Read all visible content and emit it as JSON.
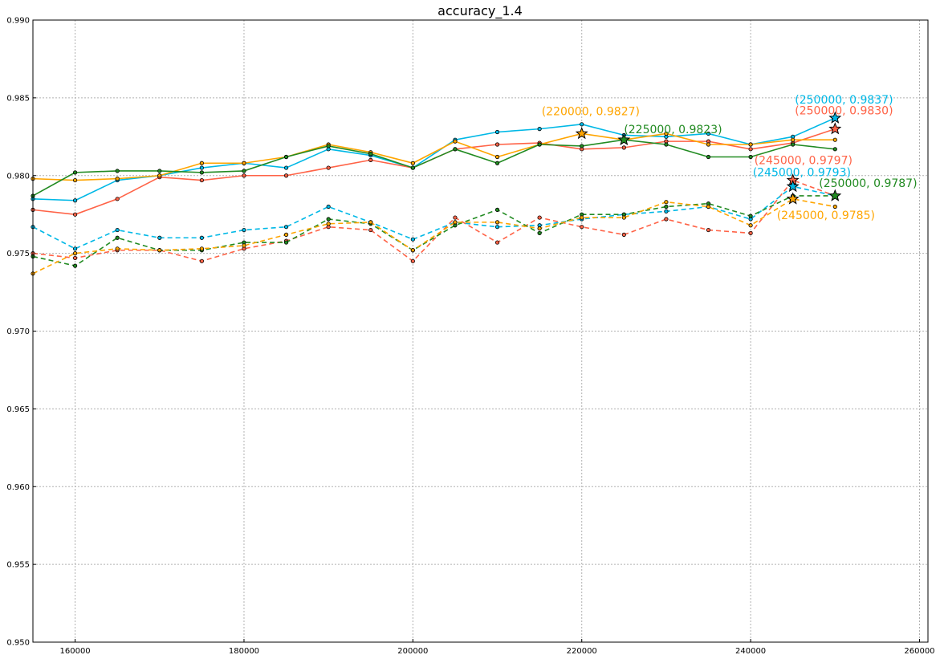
{
  "chart_data": {
    "type": "line",
    "title": "accuracy_1.4",
    "xlabel": "",
    "ylabel": "",
    "xlim": [
      155000,
      261000
    ],
    "ylim": [
      0.95,
      0.99
    ],
    "x_ticks": [
      "160000",
      "180000",
      "200000",
      "220000",
      "240000",
      "260000"
    ],
    "y_ticks": [
      "0.950",
      "0.955",
      "0.960",
      "0.965",
      "0.970",
      "0.975",
      "0.980",
      "0.985",
      "0.990"
    ],
    "grid": true,
    "legend": "none",
    "x": [
      155000,
      160000,
      165000,
      170000,
      175000,
      180000,
      185000,
      190000,
      195000,
      200000,
      205000,
      210000,
      215000,
      220000,
      225000,
      230000,
      235000,
      240000,
      245000,
      250000
    ],
    "series": [
      {
        "color": "#00b8e6",
        "dash": "solid",
        "values": [
          0.9785,
          0.9784,
          0.9797,
          0.98,
          0.9805,
          0.9808,
          0.9805,
          0.9817,
          0.9813,
          0.9805,
          0.9823,
          0.9828,
          0.983,
          0.9833,
          0.9826,
          0.9825,
          0.9827,
          0.982,
          0.9825,
          0.9837
        ],
        "best": {
          "x": 250000,
          "y": 0.9837,
          "label": "(250000, 0.9837)"
        }
      },
      {
        "color": "#ff6347",
        "dash": "solid",
        "values": [
          0.9778,
          0.9775,
          0.9785,
          0.9799,
          0.9797,
          0.98,
          0.98,
          0.9805,
          0.981,
          0.9805,
          0.9817,
          0.982,
          0.9821,
          0.9817,
          0.9818,
          0.9822,
          0.9822,
          0.9817,
          0.9821,
          0.983
        ],
        "best": {
          "x": 250000,
          "y": 0.983,
          "label": "(250000, 0.9830)"
        }
      },
      {
        "color": "#ffa500",
        "dash": "solid",
        "values": [
          0.9798,
          0.9797,
          0.9798,
          0.98,
          0.9808,
          0.9808,
          0.9812,
          0.982,
          0.9815,
          0.9808,
          0.9822,
          0.9812,
          0.982,
          0.9827,
          0.9823,
          0.9827,
          0.982,
          0.982,
          0.9823,
          0.9823
        ],
        "best": {
          "x": 220000,
          "y": 0.9827,
          "label": "(220000, 0.9827)"
        }
      },
      {
        "color": "#228b22",
        "dash": "solid",
        "values": [
          0.9787,
          0.9802,
          0.9803,
          0.9803,
          0.9802,
          0.9803,
          0.9812,
          0.9819,
          0.9814,
          0.9805,
          0.9817,
          0.9808,
          0.982,
          0.9819,
          0.9823,
          0.982,
          0.9812,
          0.9812,
          0.982,
          0.9817
        ],
        "best": {
          "x": 225000,
          "y": 0.9823,
          "label": "(225000, 0.9823)"
        }
      },
      {
        "color": "#ff6347",
        "dash": "dashed",
        "values": [
          0.975,
          0.9747,
          0.9752,
          0.9752,
          0.9745,
          0.9753,
          0.9758,
          0.9767,
          0.9765,
          0.9745,
          0.9773,
          0.9757,
          0.9773,
          0.9767,
          0.9762,
          0.9772,
          0.9765,
          0.9763,
          0.9797,
          0.9787
        ],
        "best": {
          "x": 245000,
          "y": 0.9797,
          "label": "(245000, 0.9797)"
        }
      },
      {
        "color": "#00b8e6",
        "dash": "dashed",
        "values": [
          0.9767,
          0.9753,
          0.9765,
          0.976,
          0.976,
          0.9765,
          0.9767,
          0.978,
          0.977,
          0.9759,
          0.977,
          0.9767,
          0.9768,
          0.9772,
          0.9775,
          0.9777,
          0.978,
          0.9772,
          0.9793,
          0.9787
        ],
        "best": {
          "x": 245000,
          "y": 0.9793,
          "label": "(245000, 0.9793)"
        }
      },
      {
        "color": "#228b22",
        "dash": "dashed",
        "values": [
          0.9748,
          0.9742,
          0.976,
          0.9752,
          0.9752,
          0.9757,
          0.9757,
          0.9772,
          0.9769,
          0.9752,
          0.9768,
          0.9778,
          0.9763,
          0.9775,
          0.9775,
          0.978,
          0.9782,
          0.9774,
          0.9787,
          0.9787
        ],
        "best": {
          "x": 250000,
          "y": 0.9787,
          "label": "(250000, 0.9787)"
        }
      },
      {
        "color": "#ffa500",
        "dash": "dashed",
        "values": [
          0.9737,
          0.975,
          0.9753,
          0.9752,
          0.9753,
          0.9755,
          0.9762,
          0.9769,
          0.977,
          0.9752,
          0.977,
          0.977,
          0.9766,
          0.9773,
          0.9773,
          0.9783,
          0.978,
          0.9768,
          0.9785,
          0.978
        ],
        "best": {
          "x": 245000,
          "y": 0.9785,
          "label": "(245000, 0.9785)"
        }
      }
    ]
  }
}
